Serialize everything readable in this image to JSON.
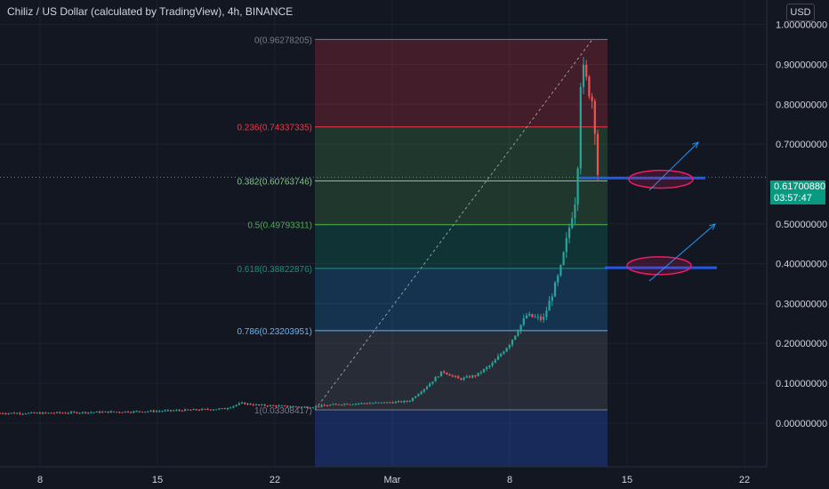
{
  "header": {
    "title": "Chiliz / US Dollar (calculated by TradingView), 4h, BINANCE",
    "currency": "USD"
  },
  "last_price": {
    "value": "0.61700880",
    "countdown": "03:57:47"
  },
  "colors": {
    "background": "#131722",
    "grid": "#1e222d",
    "up": "#26a69a",
    "down": "#ef5350",
    "price_line": "#26a69a",
    "drawing": "#2962ff",
    "arrow": "#2196f3",
    "ellipse_stroke": "#e91e63"
  },
  "chart_data": {
    "type": "candlestick",
    "symbol": "CHZUSD",
    "interval": "4h",
    "exchange": "BINANCE",
    "y_ticks": [
      "1.00000000",
      "0.90000000",
      "0.80000000",
      "0.70000000",
      "0.50000000",
      "0.40000000",
      "0.30000000",
      "0.20000000",
      "0.10000000",
      "0.00000000"
    ],
    "x_ticks": [
      "8",
      "15",
      "22",
      "Mar",
      "8",
      "15",
      "22"
    ],
    "ylim": [
      -0.065,
      1.035
    ],
    "price_path": [
      [
        "2021-02-01",
        0.025
      ],
      [
        "2021-02-08",
        0.025
      ],
      [
        "2021-02-15",
        0.03
      ],
      [
        "2021-02-19",
        0.036
      ],
      [
        "2021-02-20",
        0.05
      ],
      [
        "2021-02-21",
        0.045
      ],
      [
        "2021-02-24",
        0.04
      ],
      [
        "2021-02-26",
        0.048
      ],
      [
        "2021-03-01",
        0.052
      ],
      [
        "2021-03-02",
        0.055
      ],
      [
        "2021-03-03",
        0.09
      ],
      [
        "2021-03-04",
        0.13
      ],
      [
        "2021-03-05",
        0.11
      ],
      [
        "2021-03-06",
        0.12
      ],
      [
        "2021-03-07",
        0.15
      ],
      [
        "2021-03-08",
        0.2
      ],
      [
        "2021-03-09",
        0.27
      ],
      [
        "2021-03-10",
        0.26
      ],
      [
        "2021-03-11",
        0.38
      ],
      [
        "2021-03-12",
        0.58
      ],
      [
        "2021-03-12",
        0.9
      ],
      [
        "2021-03-13",
        0.8
      ],
      [
        "2021-03-13",
        0.617
      ]
    ],
    "fibonacci": {
      "levels": [
        {
          "label": "0(0.96278205)",
          "price": 0.96278205,
          "color": "#787b86"
        },
        {
          "label": "0.236(0.74337335)",
          "price": 0.74337335,
          "color": "#f23645"
        },
        {
          "label": "0.382(0.60763746)",
          "price": 0.60763746,
          "color": "#81c784"
        },
        {
          "label": "0.5(0.49793311)",
          "price": 0.49793311,
          "color": "#4caf50"
        },
        {
          "label": "0.618(0.38822876)",
          "price": 0.38822876,
          "color": "#089981"
        },
        {
          "label": "0.786(0.23203951)",
          "price": 0.23203951,
          "color": "#64b5f6"
        },
        {
          "label": "1(0.03308417)",
          "price": 0.03308417,
          "color": "#787b86"
        }
      ],
      "fills": [
        "#f23645",
        "#4caf50",
        "#4caf50",
        "#089981",
        "#2196f3",
        "#787b86",
        "#2962ff"
      ]
    },
    "annotations": {
      "horizontal_lines": [
        0.615,
        0.39
      ],
      "ellipses": [
        0.612,
        0.395
      ],
      "arrows": [
        "up-right",
        "up-right"
      ]
    }
  }
}
